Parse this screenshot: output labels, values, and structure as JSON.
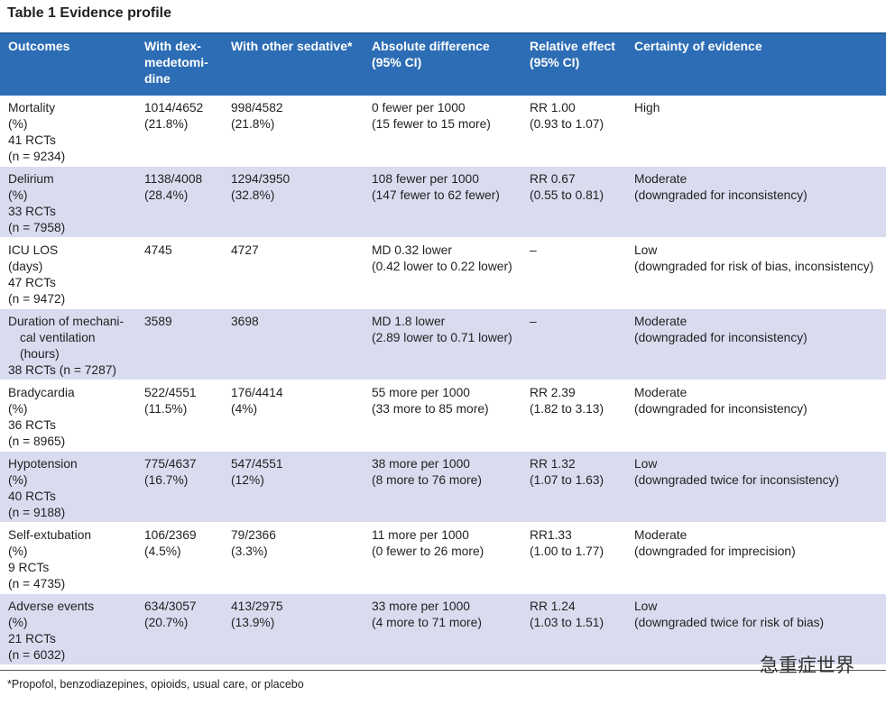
{
  "title": "Table 1  Evidence profile",
  "table": {
    "header": [
      [
        "Outcomes"
      ],
      [
        "With dex-",
        "medetomi-",
        "dine"
      ],
      [
        "With other sedative*"
      ],
      [
        "Absolute difference",
        "(95% CI)"
      ],
      [
        "Relative effect",
        "(95% CI)"
      ],
      [
        "Certainty of evidence"
      ]
    ],
    "rows": [
      [
        [
          "Mortality",
          "(%)",
          "41 RCTs",
          "(n = 9234)"
        ],
        [
          "1014/4652",
          "(21.8%)"
        ],
        [
          "998/4582",
          "(21.8%)"
        ],
        [
          "0 fewer per 1000",
          "(15 fewer to 15 more)"
        ],
        [
          "RR 1.00",
          "(0.93 to 1.07)"
        ],
        [
          "High"
        ]
      ],
      [
        [
          "Delirium",
          "(%)",
          "33 RCTs",
          "(n = 7958)"
        ],
        [
          "1138/4008",
          "(28.4%)"
        ],
        [
          "1294/3950",
          "(32.8%)"
        ],
        [
          "108 fewer per 1000",
          "(147 fewer to 62 fewer)"
        ],
        [
          "RR 0.67",
          "(0.55 to 0.81)"
        ],
        [
          "Moderate",
          "(downgraded for inconsistency)"
        ]
      ],
      [
        [
          "ICU LOS",
          "(days)",
          "47 RCTs",
          "(n = 9472)"
        ],
        [
          "4745"
        ],
        [
          "4727"
        ],
        [
          "MD 0.32 lower",
          "(0.42 lower to 0.22 lower)"
        ],
        [
          "–"
        ],
        [
          "Low",
          "(downgraded for risk of bias, inconsistency)"
        ]
      ],
      [
        [
          "Duration of mechani-",
          "cal ventilation",
          "(hours)",
          "38 RCTs (n = 7287)"
        ],
        [
          "3589"
        ],
        [
          "3698"
        ],
        [
          "MD 1.8 lower",
          "(2.89 lower to 0.71 lower)"
        ],
        [
          "–"
        ],
        [
          "Moderate",
          "(downgraded for inconsistency)"
        ]
      ],
      [
        [
          "Bradycardia",
          "(%)",
          "36 RCTs",
          "(n = 8965)"
        ],
        [
          "522/4551",
          "(11.5%)"
        ],
        [
          "176/4414",
          "(4%)"
        ],
        [
          "55 more per 1000",
          "(33 more to 85 more)"
        ],
        [
          "RR 2.39",
          "(1.82 to 3.13)"
        ],
        [
          "Moderate",
          "(downgraded for inconsistency)"
        ]
      ],
      [
        [
          "Hypotension",
          "(%)",
          "40 RCTs",
          "(n = 9188)"
        ],
        [
          "775/4637",
          "(16.7%)"
        ],
        [
          "547/4551",
          "(12%)"
        ],
        [
          "38 more per 1000",
          "(8 more to 76 more)"
        ],
        [
          "RR 1.32",
          "(1.07 to 1.63)"
        ],
        [
          "Low",
          "(downgraded twice for inconsistency)"
        ]
      ],
      [
        [
          "Self-extubation",
          "(%)",
          "9 RCTs",
          "(n = 4735)"
        ],
        [
          "106/2369",
          "(4.5%)"
        ],
        [
          "79/2366",
          "(3.3%)"
        ],
        [
          "11 more per 1000",
          "(0 fewer to 26 more)"
        ],
        [
          "RR1.33",
          "(1.00 to 1.77)"
        ],
        [
          "Moderate",
          "(downgraded for imprecision)"
        ]
      ],
      [
        [
          "Adverse events",
          "(%)",
          "21 RCTs",
          "(n = 6032)"
        ],
        [
          "634/3057",
          "(20.7%)"
        ],
        [
          "413/2975",
          "(13.9%)"
        ],
        [
          "33 more per 1000",
          "(4 more to 71 more)"
        ],
        [
          "RR 1.24",
          "(1.03 to 1.51)"
        ],
        [
          "Low",
          "(downgraded twice for risk of bias)"
        ]
      ]
    ]
  },
  "footnote": "*Propofol, benzodiazepines, opioids, usual care, or placebo",
  "watermark": "急重症世界"
}
